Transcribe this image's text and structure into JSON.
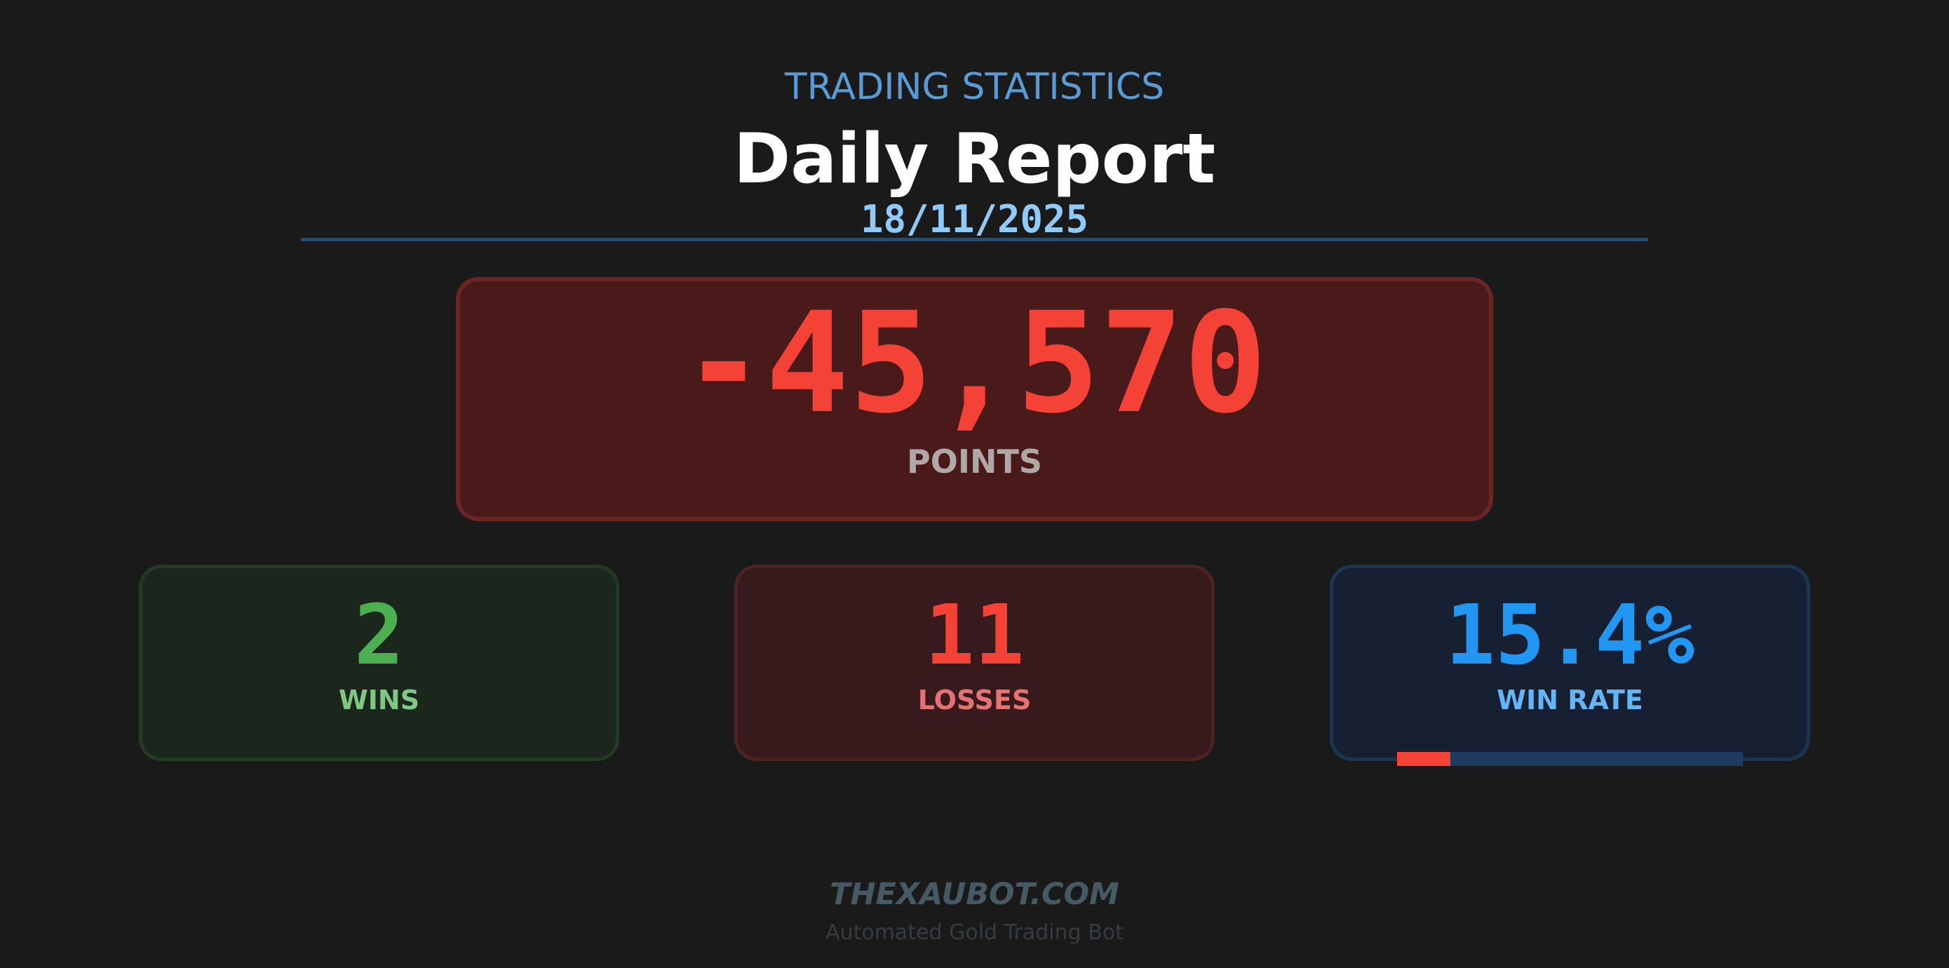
{
  "header": {
    "subtitle": "TRADING STATISTICS",
    "title": "Daily Report",
    "date": "18/11/2025"
  },
  "result": {
    "points_value": "-45,570",
    "points_label": "POINTS"
  },
  "stats": {
    "wins": {
      "value": "2",
      "label": "WINS"
    },
    "losses": {
      "value": "11",
      "label": "LOSSES"
    },
    "win_rate": {
      "value": "15.4%",
      "label": "WIN RATE",
      "progress_percent": 15.4
    }
  },
  "footer": {
    "brand": "THEXAUBOT.COM",
    "tagline": "Automated Gold Trading Bot"
  },
  "colors": {
    "background": "#1a1a1a",
    "negative": "#f44336",
    "positive": "#4caf50",
    "accent": "#2196f3"
  }
}
